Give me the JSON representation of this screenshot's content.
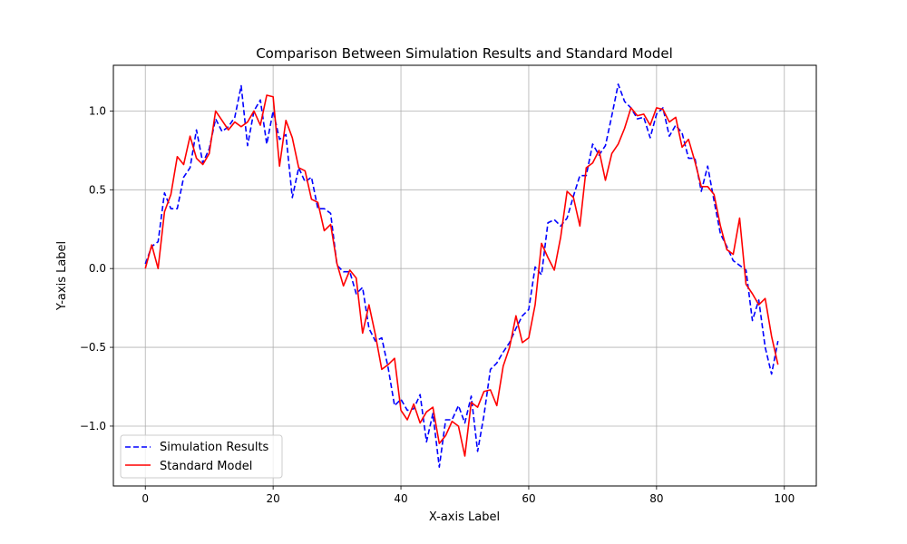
{
  "chart_data": {
    "type": "line",
    "title": "Comparison Between Simulation Results and Standard Model",
    "xlabel": "X-axis Label",
    "ylabel": "Y-axis Label",
    "xlim": [
      -5,
      105
    ],
    "ylim": [
      -1.38,
      1.29
    ],
    "xticks": [
      0,
      20,
      40,
      60,
      80,
      100
    ],
    "yticks": [
      -1.0,
      -0.5,
      0.0,
      0.5,
      1.0
    ],
    "xtick_labels": [
      "0",
      "20",
      "40",
      "60",
      "80",
      "100"
    ],
    "ytick_labels": [
      "−1.0",
      "−0.5",
      "0.0",
      "0.5",
      "1.0"
    ],
    "grid": true,
    "legend_position": "lower-left",
    "x": [
      0,
      1,
      2,
      3,
      4,
      5,
      6,
      7,
      8,
      9,
      10,
      11,
      12,
      13,
      14,
      15,
      16,
      17,
      18,
      19,
      20,
      21,
      22,
      23,
      24,
      25,
      26,
      27,
      28,
      29,
      30,
      31,
      32,
      33,
      34,
      35,
      36,
      37,
      38,
      39,
      40,
      41,
      42,
      43,
      44,
      45,
      46,
      47,
      48,
      49,
      50,
      51,
      52,
      53,
      54,
      55,
      56,
      57,
      58,
      59,
      60,
      61,
      62,
      63,
      64,
      65,
      66,
      67,
      68,
      69,
      70,
      71,
      72,
      73,
      74,
      75,
      76,
      77,
      78,
      79,
      80,
      81,
      82,
      83,
      84,
      85,
      86,
      87,
      88,
      89,
      90,
      91,
      92,
      93,
      94,
      95,
      96,
      97,
      98,
      99,
      100
    ],
    "series": [
      {
        "name": "Simulation Results",
        "color": "#0000ff",
        "style": "dashed",
        "values": [
          0.03,
          0.14,
          0.17,
          0.48,
          0.38,
          0.38,
          0.58,
          0.64,
          0.88,
          0.67,
          0.76,
          0.95,
          0.87,
          0.9,
          0.96,
          1.16,
          0.78,
          1.0,
          1.07,
          0.79,
          1.0,
          0.82,
          0.85,
          0.45,
          0.64,
          0.55,
          0.58,
          0.38,
          0.38,
          0.35,
          0.02,
          -0.02,
          -0.02,
          -0.16,
          -0.12,
          -0.38,
          -0.46,
          -0.44,
          -0.63,
          -0.87,
          -0.83,
          -0.9,
          -0.89,
          -0.8,
          -1.1,
          -0.92,
          -1.26,
          -0.96,
          -0.96,
          -0.87,
          -0.98,
          -0.81,
          -1.16,
          -0.93,
          -0.64,
          -0.6,
          -0.53,
          -0.47,
          -0.38,
          -0.3,
          -0.26,
          0.01,
          -0.04,
          0.29,
          0.31,
          0.27,
          0.32,
          0.46,
          0.59,
          0.59,
          0.79,
          0.72,
          0.78,
          0.97,
          1.17,
          1.06,
          1.02,
          0.95,
          0.96,
          0.83,
          0.98,
          1.02,
          0.84,
          0.91,
          0.86,
          0.7,
          0.7,
          0.49,
          0.65,
          0.43,
          0.22,
          0.14,
          0.05,
          0.02,
          -0.01,
          -0.33,
          -0.2,
          -0.5,
          -0.67,
          -0.46,
          null
        ]
      },
      {
        "name": "Standard Model",
        "color": "#ff0000",
        "style": "solid",
        "values": [
          0.0,
          0.15,
          0.0,
          0.36,
          0.47,
          0.71,
          0.66,
          0.84,
          0.7,
          0.66,
          0.73,
          1.0,
          0.94,
          0.88,
          0.93,
          0.9,
          0.93,
          1.0,
          0.91,
          1.1,
          1.09,
          0.65,
          0.94,
          0.83,
          0.64,
          0.62,
          0.44,
          0.42,
          0.24,
          0.28,
          0.03,
          -0.11,
          -0.01,
          -0.06,
          -0.41,
          -0.23,
          -0.42,
          -0.64,
          -0.61,
          -0.57,
          -0.9,
          -0.96,
          -0.86,
          -0.98,
          -0.91,
          -0.88,
          -1.11,
          -1.06,
          -0.97,
          -1.0,
          -1.19,
          -0.85,
          -0.88,
          -0.78,
          -0.77,
          -0.87,
          -0.62,
          -0.5,
          -0.3,
          -0.47,
          -0.44,
          -0.23,
          0.16,
          0.07,
          -0.01,
          0.2,
          0.49,
          0.45,
          0.27,
          0.64,
          0.67,
          0.75,
          0.56,
          0.73,
          0.79,
          0.89,
          1.02,
          0.97,
          0.98,
          0.91,
          1.02,
          1.01,
          0.93,
          0.96,
          0.77,
          0.82,
          0.68,
          0.52,
          0.52,
          0.47,
          0.27,
          0.12,
          0.09,
          0.32,
          -0.1,
          -0.16,
          -0.23,
          -0.19,
          -0.43,
          -0.61,
          null
        ]
      }
    ]
  }
}
